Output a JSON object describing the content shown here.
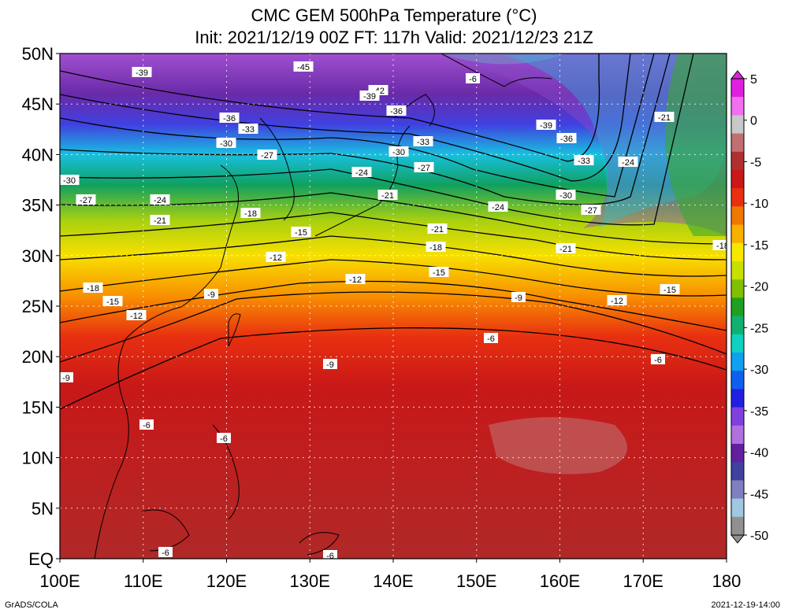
{
  "title": {
    "line1": "CMC GEM 500hPa Temperature (°C)",
    "line2": "Init: 2021/12/19 00Z  FT: 117h  Valid: 2021/12/23 21Z"
  },
  "map": {
    "lat_labels": [
      "50N",
      "45N",
      "40N",
      "35N",
      "30N",
      "25N",
      "20N",
      "15N",
      "10N",
      "5N",
      "EQ"
    ],
    "lon_labels": [
      "100E",
      "110E",
      "120E",
      "130E",
      "140E",
      "150E",
      "160E",
      "170E",
      "180"
    ],
    "contour_labels": [
      "-45",
      "-42",
      "-39",
      "-39",
      "-39",
      "-36",
      "-36",
      "-36",
      "-33",
      "-33",
      "-33",
      "-30",
      "-30",
      "-30",
      "-30",
      "-27",
      "-27",
      "-27",
      "-27",
      "-24",
      "-24",
      "-24",
      "-24",
      "-21",
      "-21",
      "-21",
      "-21",
      "-21",
      "-18",
      "-18",
      "-18",
      "-18",
      "-15",
      "-15",
      "-15",
      "-15",
      "-12",
      "-12",
      "-12",
      "-12",
      "-9",
      "-9",
      "-9",
      "-9",
      "-6",
      "-6",
      "-6",
      "-6",
      "-6",
      "-6",
      "-6"
    ]
  },
  "colorbar": {
    "labels": [
      "5",
      "0",
      "-5",
      "-10",
      "-15",
      "-20",
      "-25",
      "-30",
      "-35",
      "-40",
      "-45",
      "-50"
    ],
    "colors": [
      "#e020e0",
      "#f070f0",
      "#c8c8c8",
      "#c07070",
      "#b03030",
      "#c81818",
      "#e83010",
      "#f07800",
      "#f8b000",
      "#f8e800",
      "#c8e000",
      "#80c000",
      "#20a020",
      "#10b070",
      "#10d0c0",
      "#10a0f0",
      "#1060f0",
      "#2020e0",
      "#8040e0",
      "#b070e0",
      "#6020a0",
      "#4040a0",
      "#8080c0",
      "#a0c8e0",
      "#909090"
    ]
  },
  "footer": {
    "left": "GrADS/COLA",
    "right": "2021-12-19-14:00"
  }
}
